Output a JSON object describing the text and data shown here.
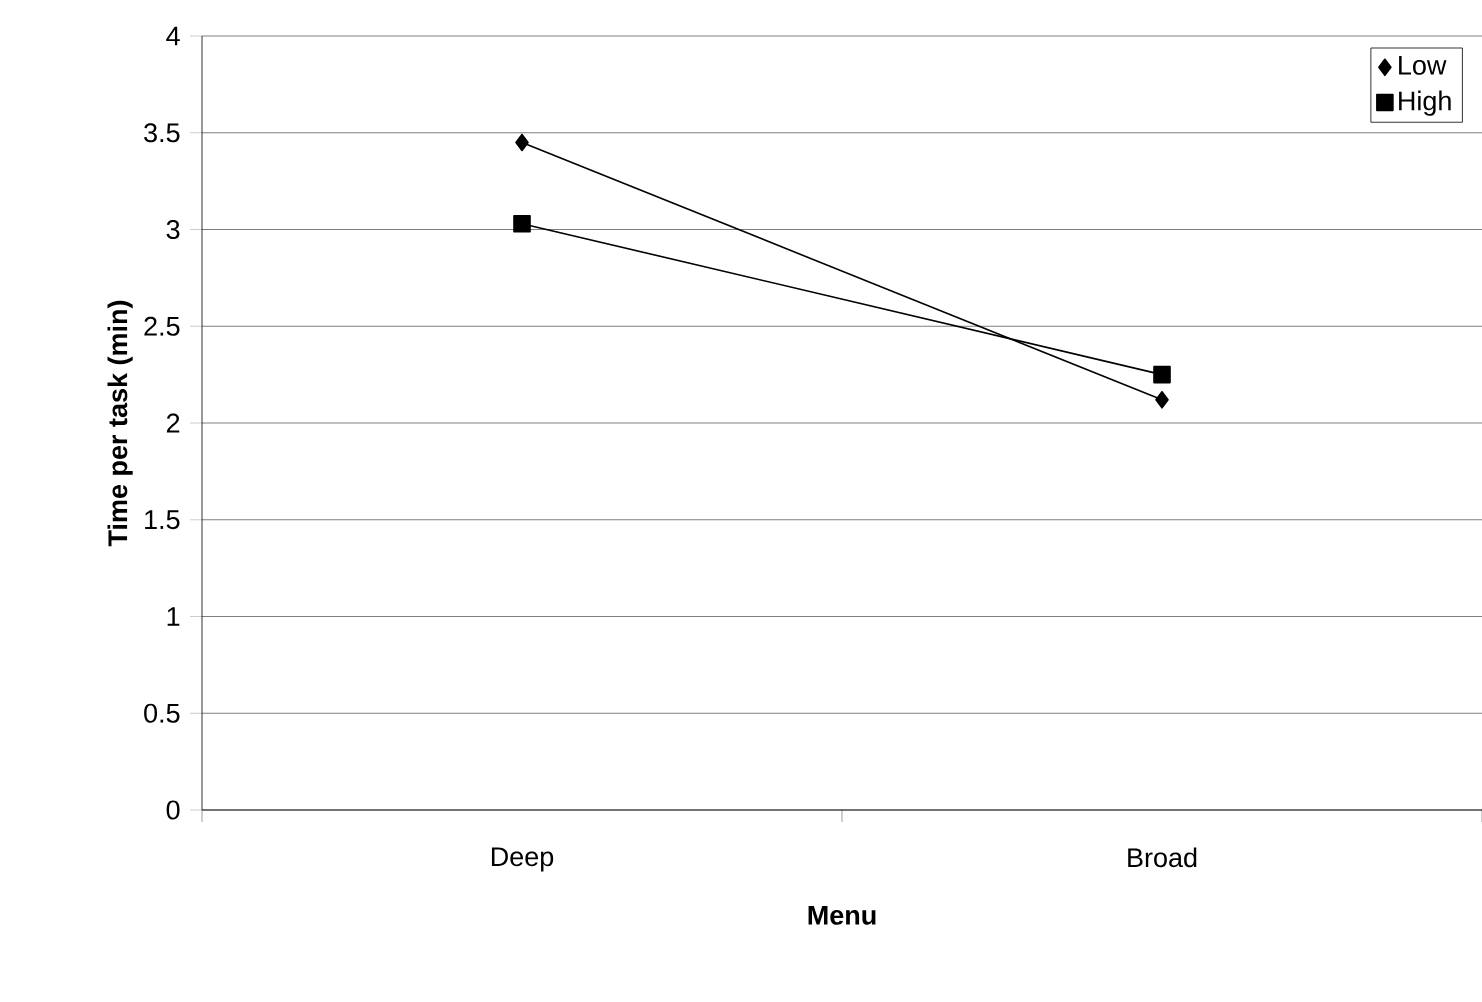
{
  "chart_data": {
    "type": "line",
    "xlabel": "Menu",
    "ylabel": "Time per task (min)",
    "categories": [
      "Deep",
      "Broad"
    ],
    "series": [
      {
        "name": "Low",
        "color": "#000000",
        "marker": "diamond",
        "values": [
          3.45,
          2.12
        ]
      },
      {
        "name": "High",
        "color": "#000000",
        "marker": "square",
        "values": [
          3.03,
          2.25
        ]
      }
    ],
    "ylim": [
      0,
      4
    ],
    "yticks": [
      0,
      0.5,
      1,
      1.5,
      2,
      2.5,
      3,
      3.5,
      4
    ],
    "grid": "y",
    "legend": "top right",
    "line_style": "solid"
  }
}
